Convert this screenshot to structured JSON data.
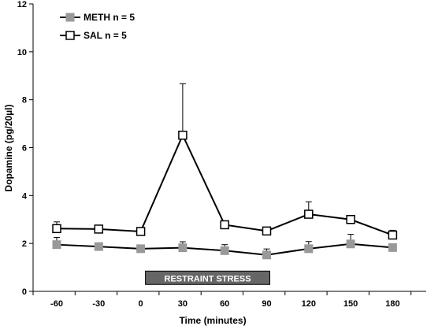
{
  "chart_data": {
    "type": "line",
    "x": [
      -60,
      -30,
      0,
      30,
      60,
      90,
      120,
      150,
      180
    ],
    "x_tick_labels": [
      "-60",
      "-30",
      "0",
      "30",
      "60",
      "90",
      "120",
      "150",
      "180"
    ],
    "y_tick_labels": [
      "0",
      "2",
      "4",
      "6",
      "8",
      "10",
      "12"
    ],
    "ylim": [
      0,
      12
    ],
    "xlabel": "Time (minutes)",
    "ylabel": "Dopamine  (pg/20µl)",
    "legend_position": "top-left",
    "series": [
      {
        "name": "METH n = 5",
        "marker": "filled-square",
        "color": "#999999",
        "values": [
          1.95,
          1.87,
          1.78,
          1.82,
          1.7,
          1.52,
          1.78,
          1.98,
          1.83
        ],
        "errors": [
          0.3,
          0.0,
          0.0,
          0.25,
          0.25,
          0.25,
          0.3,
          0.4,
          0.0
        ]
      },
      {
        "name": "SAL n = 5",
        "marker": "open-square",
        "color": "#000000",
        "values": [
          2.62,
          2.6,
          2.5,
          6.52,
          2.78,
          2.52,
          3.22,
          3.0,
          2.35
        ],
        "errors": [
          0.28,
          0.0,
          0.0,
          2.15,
          0.0,
          0.0,
          0.52,
          0.0,
          0.2
        ]
      }
    ],
    "annotations": [
      {
        "text": "RESTRAINT STRESS",
        "x_start": 0,
        "x_end": 90,
        "y": 0.55
      }
    ]
  }
}
